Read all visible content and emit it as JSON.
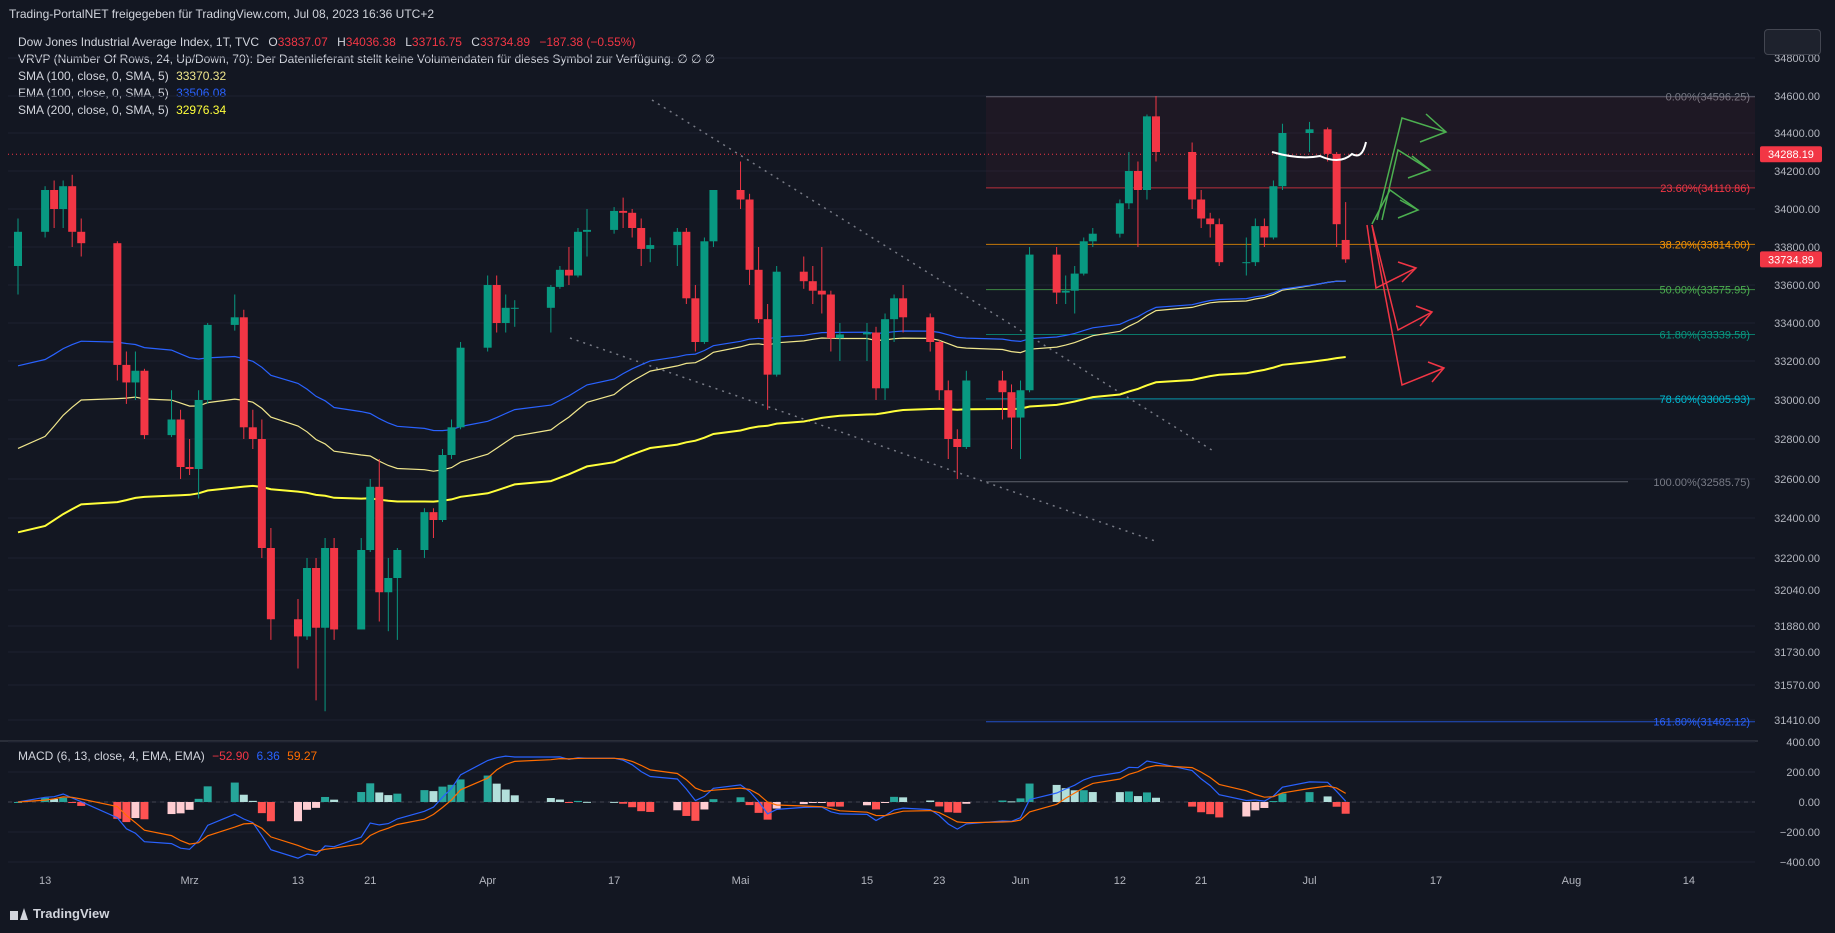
{
  "header": {
    "title": "Trading-PortalNET freigegeben für TradingView.com, Jul 08, 2023 16:36 UTC+2"
  },
  "legend": {
    "symbol": "Dow Jones Industrial Average Index, 1T, TVC",
    "ohlc": {
      "o_label": "O",
      "o": "33837.07",
      "h_label": "H",
      "h": "34036.38",
      "l_label": "L",
      "l": "33716.75",
      "c_label": "C",
      "c": "33734.89",
      "chg": "−187.38 (−0.55%)"
    },
    "vrvp": "VRVP (Number Of Rows, 24, Up/Down, 70): Der Datenlieferant stellt keine Volumendaten für dieses Symbol zur Verfügung.  ∅ ∅ ∅",
    "indicators": [
      {
        "name": "SMA (100, close, 0, SMA, 5)",
        "value": "33370.32",
        "color": "#f0e68c"
      },
      {
        "name": "EMA (100, close, 0, SMA, 5)",
        "value": "33506.08",
        "color": "#2962ff"
      },
      {
        "name": "SMA (200, close, 0, SMA, 5)",
        "value": "32976.34",
        "color": "#ffff3b"
      }
    ]
  },
  "macd": {
    "label": "MACD (6, 13, close, 4, EMA, EMA)",
    "v1": "−52.90",
    "v1_color": "#f23645",
    "v2": "6.36",
    "v2_color": "#2962ff",
    "v3": "59.27",
    "v3_color": "#ff6d00",
    "yticks": [
      "400.00",
      "200.00",
      "0.00",
      "−200.00",
      "−400.00"
    ]
  },
  "price_axis": {
    "ticks": [
      "34800.00",
      "34600.00",
      "34400.00",
      "34200.00",
      "34000.00",
      "33800.00",
      "33600.00",
      "33400.00",
      "33200.00",
      "33000.00",
      "32800.00",
      "32600.00",
      "32400.00",
      "32200.00",
      "32040.00",
      "31880.00",
      "31730.00",
      "31570.00",
      "31410.00"
    ],
    "last_price_badge": "33734.89",
    "marker_badge": "34288.19"
  },
  "time_axis": {
    "labels": [
      "13",
      "Mrz",
      "13",
      "21",
      "Apr",
      "17",
      "Mai",
      "15",
      "23",
      "Jun",
      "12",
      "21",
      "Jul",
      "17",
      "Aug",
      "14"
    ]
  },
  "fibonacci": [
    {
      "label": "0.00%(34596.25)",
      "price": 34596.25,
      "color": "#787b86"
    },
    {
      "label": "23.60%(34110.86)",
      "price": 34110.86,
      "color": "#f23645"
    },
    {
      "label": "38.20%(33814.00)",
      "price": 33814.0,
      "color": "#ff9800"
    },
    {
      "label": "50.00%(33575.95)",
      "price": 33575.95,
      "color": "#4caf50"
    },
    {
      "label": "61.80%(33339.58)",
      "price": 33339.58,
      "color": "#089981"
    },
    {
      "label": "78.60%(33005.93)",
      "price": 33005.93,
      "color": "#00bcd4"
    },
    {
      "label": "100.00%(32585.75)",
      "price": 32585.75,
      "color": "#787b86"
    },
    {
      "label": "161.80%(31402.12)",
      "price": 31402.12,
      "color": "#2962ff"
    }
  ],
  "brand": "TradingView",
  "chart_data": {
    "type": "candlestick",
    "title": "Dow Jones Industrial Average Index, 1T, TVC",
    "up_color": "#089981",
    "down_color": "#f23645",
    "candles": [
      {
        "x": "2023-02-10",
        "o": 33700,
        "h": 33950,
        "l": 33550,
        "c": 33880
      },
      {
        "x": "2023-02-13",
        "o": 33880,
        "h": 34120,
        "l": 33850,
        "c": 34100
      },
      {
        "x": "2023-02-14",
        "o": 34100,
        "h": 34150,
        "l": 33900,
        "c": 34000
      },
      {
        "x": "2023-02-15",
        "o": 34000,
        "h": 34150,
        "l": 33900,
        "c": 34120
      },
      {
        "x": "2023-02-16",
        "o": 34120,
        "h": 34180,
        "l": 33800,
        "c": 33880
      },
      {
        "x": "2023-02-17",
        "o": 33880,
        "h": 33950,
        "l": 33750,
        "c": 33820
      },
      {
        "x": "2023-02-21",
        "o": 33820,
        "h": 33830,
        "l": 33100,
        "c": 33180
      },
      {
        "x": "2023-02-22",
        "o": 33180,
        "h": 33250,
        "l": 32980,
        "c": 33090
      },
      {
        "x": "2023-02-23",
        "o": 33090,
        "h": 33250,
        "l": 33000,
        "c": 33150
      },
      {
        "x": "2023-02-24",
        "o": 33150,
        "h": 33160,
        "l": 32800,
        "c": 32820
      },
      {
        "x": "2023-02-27",
        "o": 32820,
        "h": 33050,
        "l": 32810,
        "c": 32900
      },
      {
        "x": "2023-02-28",
        "o": 32900,
        "h": 32950,
        "l": 32600,
        "c": 32660
      },
      {
        "x": "2023-03-01",
        "o": 32660,
        "h": 32800,
        "l": 32620,
        "c": 32650
      },
      {
        "x": "2023-03-02",
        "o": 32650,
        "h": 33050,
        "l": 32500,
        "c": 33000
      },
      {
        "x": "2023-03-03",
        "o": 33000,
        "h": 33400,
        "l": 32980,
        "c": 33390
      },
      {
        "x": "2023-03-06",
        "o": 33390,
        "h": 33550,
        "l": 33360,
        "c": 33430
      },
      {
        "x": "2023-03-07",
        "o": 33430,
        "h": 33470,
        "l": 32800,
        "c": 32860
      },
      {
        "x": "2023-03-08",
        "o": 32860,
        "h": 32950,
        "l": 32750,
        "c": 32800
      },
      {
        "x": "2023-03-09",
        "o": 32800,
        "h": 32900,
        "l": 32200,
        "c": 32250
      },
      {
        "x": "2023-03-10",
        "o": 32250,
        "h": 32350,
        "l": 31800,
        "c": 31910
      },
      {
        "x": "2023-03-13",
        "o": 31910,
        "h": 32000,
        "l": 31650,
        "c": 31820
      },
      {
        "x": "2023-03-14",
        "o": 31820,
        "h": 32200,
        "l": 31800,
        "c": 32150
      },
      {
        "x": "2023-03-15",
        "o": 32150,
        "h": 32200,
        "l": 31500,
        "c": 31870
      },
      {
        "x": "2023-03-16",
        "o": 31870,
        "h": 32300,
        "l": 31450,
        "c": 32250
      },
      {
        "x": "2023-03-17",
        "o": 32250,
        "h": 32300,
        "l": 31800,
        "c": 31860
      },
      {
        "x": "2023-03-20",
        "o": 31860,
        "h": 32300,
        "l": 31860,
        "c": 32240
      },
      {
        "x": "2023-03-21",
        "o": 32240,
        "h": 32600,
        "l": 32230,
        "c": 32560
      },
      {
        "x": "2023-03-22",
        "o": 32560,
        "h": 32700,
        "l": 31900,
        "c": 32030
      },
      {
        "x": "2023-03-23",
        "o": 32030,
        "h": 32200,
        "l": 31850,
        "c": 32100
      },
      {
        "x": "2023-03-24",
        "o": 32100,
        "h": 32250,
        "l": 31800,
        "c": 32240
      },
      {
        "x": "2023-03-27",
        "o": 32240,
        "h": 32450,
        "l": 32200,
        "c": 32430
      },
      {
        "x": "2023-03-28",
        "o": 32430,
        "h": 32450,
        "l": 32300,
        "c": 32390
      },
      {
        "x": "2023-03-29",
        "o": 32390,
        "h": 32750,
        "l": 32380,
        "c": 32720
      },
      {
        "x": "2023-03-30",
        "o": 32720,
        "h": 32900,
        "l": 32700,
        "c": 32860
      },
      {
        "x": "2023-03-31",
        "o": 32860,
        "h": 33300,
        "l": 32850,
        "c": 33270
      },
      {
        "x": "2023-04-03",
        "o": 33270,
        "h": 33650,
        "l": 33250,
        "c": 33600
      },
      {
        "x": "2023-04-04",
        "o": 33600,
        "h": 33650,
        "l": 33350,
        "c": 33400
      },
      {
        "x": "2023-04-05",
        "o": 33400,
        "h": 33550,
        "l": 33350,
        "c": 33480
      },
      {
        "x": "2023-04-06",
        "o": 33480,
        "h": 33520,
        "l": 33380,
        "c": 33480
      },
      {
        "x": "2023-04-10",
        "o": 33480,
        "h": 33600,
        "l": 33350,
        "c": 33590
      },
      {
        "x": "2023-04-11",
        "o": 33590,
        "h": 33700,
        "l": 33580,
        "c": 33680
      },
      {
        "x": "2023-04-12",
        "o": 33680,
        "h": 33800,
        "l": 33600,
        "c": 33650
      },
      {
        "x": "2023-04-13",
        "o": 33650,
        "h": 33900,
        "l": 33640,
        "c": 33880
      },
      {
        "x": "2023-04-14",
        "o": 33880,
        "h": 34000,
        "l": 33750,
        "c": 33890
      },
      {
        "x": "2023-04-17",
        "o": 33890,
        "h": 34010,
        "l": 33870,
        "c": 33990
      },
      {
        "x": "2023-04-18",
        "o": 33990,
        "h": 34060,
        "l": 33900,
        "c": 33980
      },
      {
        "x": "2023-04-19",
        "o": 33980,
        "h": 34000,
        "l": 33850,
        "c": 33900
      },
      {
        "x": "2023-04-20",
        "o": 33900,
        "h": 33950,
        "l": 33700,
        "c": 33790
      },
      {
        "x": "2023-04-21",
        "o": 33790,
        "h": 33850,
        "l": 33720,
        "c": 33810
      },
      {
        "x": "2023-04-24",
        "o": 33810,
        "h": 33900,
        "l": 33700,
        "c": 33880
      },
      {
        "x": "2023-04-25",
        "o": 33880,
        "h": 33900,
        "l": 33500,
        "c": 33530
      },
      {
        "x": "2023-04-26",
        "o": 33530,
        "h": 33600,
        "l": 33250,
        "c": 33300
      },
      {
        "x": "2023-04-27",
        "o": 33300,
        "h": 33850,
        "l": 33290,
        "c": 33830
      },
      {
        "x": "2023-04-28",
        "o": 33830,
        "h": 34100,
        "l": 33800,
        "c": 34100
      },
      {
        "x": "2023-05-01",
        "o": 34100,
        "h": 34250,
        "l": 34000,
        "c": 34050
      },
      {
        "x": "2023-05-02",
        "o": 34050,
        "h": 34080,
        "l": 33600,
        "c": 33680
      },
      {
        "x": "2023-05-03",
        "o": 33680,
        "h": 33800,
        "l": 33400,
        "c": 33420
      },
      {
        "x": "2023-05-04",
        "o": 33420,
        "h": 33500,
        "l": 32950,
        "c": 33130
      },
      {
        "x": "2023-05-05",
        "o": 33130,
        "h": 33700,
        "l": 33120,
        "c": 33670
      },
      {
        "x": "2023-05-08",
        "o": 33670,
        "h": 33750,
        "l": 33580,
        "c": 33620
      },
      {
        "x": "2023-05-09",
        "o": 33620,
        "h": 33700,
        "l": 33500,
        "c": 33570
      },
      {
        "x": "2023-05-10",
        "o": 33570,
        "h": 33800,
        "l": 33450,
        "c": 33550
      },
      {
        "x": "2023-05-11",
        "o": 33550,
        "h": 33570,
        "l": 33250,
        "c": 33320
      },
      {
        "x": "2023-05-12",
        "o": 33320,
        "h": 33400,
        "l": 33200,
        "c": 33340
      },
      {
        "x": "2023-05-15",
        "o": 33340,
        "h": 33400,
        "l": 33200,
        "c": 33350
      },
      {
        "x": "2023-05-16",
        "o": 33350,
        "h": 33380,
        "l": 33000,
        "c": 33060
      },
      {
        "x": "2023-05-17",
        "o": 33060,
        "h": 33450,
        "l": 33000,
        "c": 33420
      },
      {
        "x": "2023-05-18",
        "o": 33420,
        "h": 33550,
        "l": 33300,
        "c": 33530
      },
      {
        "x": "2023-05-19",
        "o": 33530,
        "h": 33600,
        "l": 33350,
        "c": 33430
      },
      {
        "x": "2023-05-22",
        "o": 33430,
        "h": 33450,
        "l": 33250,
        "c": 33300
      },
      {
        "x": "2023-05-23",
        "o": 33300,
        "h": 33310,
        "l": 33000,
        "c": 33050
      },
      {
        "x": "2023-05-24",
        "o": 33050,
        "h": 33100,
        "l": 32700,
        "c": 32800
      },
      {
        "x": "2023-05-25",
        "o": 32800,
        "h": 32850,
        "l": 32600,
        "c": 32760
      },
      {
        "x": "2023-05-26",
        "o": 32760,
        "h": 33150,
        "l": 32750,
        "c": 33100
      },
      {
        "x": "2023-05-30",
        "o": 33100,
        "h": 33150,
        "l": 32900,
        "c": 33040
      },
      {
        "x": "2023-05-31",
        "o": 33040,
        "h": 33080,
        "l": 32750,
        "c": 32910
      },
      {
        "x": "2023-06-01",
        "o": 32910,
        "h": 33100,
        "l": 32700,
        "c": 33050
      },
      {
        "x": "2023-06-02",
        "o": 33050,
        "h": 33800,
        "l": 33040,
        "c": 33760
      },
      {
        "x": "2023-06-05",
        "o": 33760,
        "h": 33800,
        "l": 33500,
        "c": 33560
      },
      {
        "x": "2023-06-06",
        "o": 33560,
        "h": 33650,
        "l": 33500,
        "c": 33570
      },
      {
        "x": "2023-06-07",
        "o": 33570,
        "h": 33700,
        "l": 33450,
        "c": 33660
      },
      {
        "x": "2023-06-08",
        "o": 33660,
        "h": 33850,
        "l": 33650,
        "c": 33830
      },
      {
        "x": "2023-06-09",
        "o": 33830,
        "h": 33900,
        "l": 33800,
        "c": 33870
      },
      {
        "x": "2023-06-12",
        "o": 33870,
        "h": 34050,
        "l": 33850,
        "c": 34030
      },
      {
        "x": "2023-06-13",
        "o": 34030,
        "h": 34300,
        "l": 34000,
        "c": 34200
      },
      {
        "x": "2023-06-14",
        "o": 34200,
        "h": 34250,
        "l": 33800,
        "c": 34100
      },
      {
        "x": "2023-06-15",
        "o": 34100,
        "h": 34500,
        "l": 34050,
        "c": 34490
      },
      {
        "x": "2023-06-16",
        "o": 34490,
        "h": 34600,
        "l": 34250,
        "c": 34300
      },
      {
        "x": "2023-06-20",
        "o": 34300,
        "h": 34350,
        "l": 34000,
        "c": 34050
      },
      {
        "x": "2023-06-21",
        "o": 34050,
        "h": 34100,
        "l": 33900,
        "c": 33950
      },
      {
        "x": "2023-06-22",
        "o": 33950,
        "h": 33980,
        "l": 33850,
        "c": 33920
      },
      {
        "x": "2023-06-23",
        "o": 33920,
        "h": 33950,
        "l": 33700,
        "c": 33720
      },
      {
        "x": "2023-06-26",
        "o": 33720,
        "h": 33850,
        "l": 33650,
        "c": 33720
      },
      {
        "x": "2023-06-27",
        "o": 33720,
        "h": 33950,
        "l": 33700,
        "c": 33910
      },
      {
        "x": "2023-06-28",
        "o": 33910,
        "h": 33950,
        "l": 33800,
        "c": 33850
      },
      {
        "x": "2023-06-29",
        "o": 33850,
        "h": 34150,
        "l": 33840,
        "c": 34120
      },
      {
        "x": "2023-06-30",
        "o": 34120,
        "h": 34450,
        "l": 34100,
        "c": 34400
      },
      {
        "x": "2023-07-03",
        "o": 34400,
        "h": 34460,
        "l": 34300,
        "c": 34420
      },
      {
        "x": "2023-07-05",
        "o": 34420,
        "h": 34430,
        "l": 34250,
        "c": 34290
      },
      {
        "x": "2023-07-06",
        "o": 34290,
        "h": 34300,
        "l": 33800,
        "c": 33920
      },
      {
        "x": "2023-07-07",
        "o": 33837.07,
        "h": 34036.38,
        "l": 33716.75,
        "c": 33734.89
      }
    ],
    "sma100_end": 33370.32,
    "ema100_end": 33506.08,
    "sma200_end": 32976.34,
    "y_range": [
      31300,
      34900
    ],
    "x_range": [
      "2023-02-10",
      "2023-08-18"
    ]
  }
}
